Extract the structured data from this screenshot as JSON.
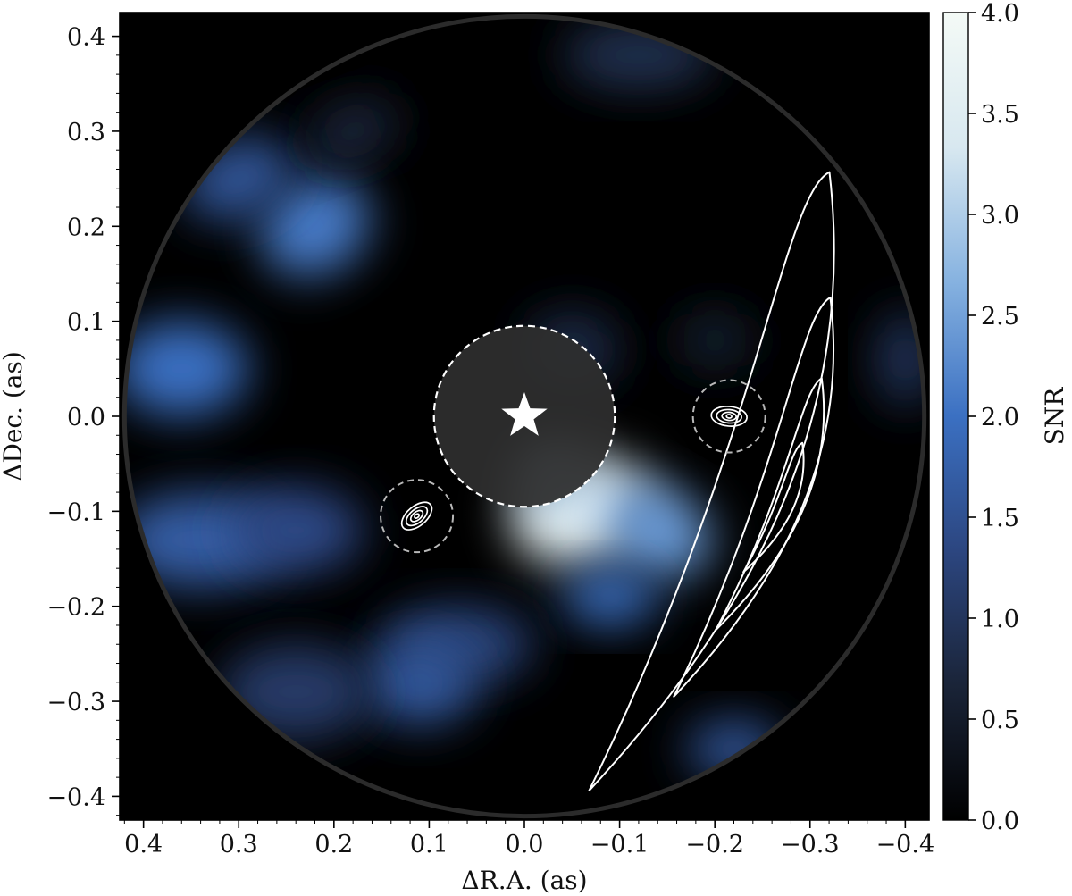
{
  "chart_data": {
    "type": "heatmap",
    "title": "",
    "xlabel": "ΔR.A. (as)",
    "ylabel": "ΔDec. (as)",
    "xlim": [
      0.425,
      -0.425
    ],
    "ylim": [
      -0.425,
      0.425
    ],
    "x_ticks": [
      0.4,
      0.3,
      0.2,
      0.1,
      0.0,
      -0.1,
      -0.2,
      -0.3,
      -0.4
    ],
    "x_tick_labels": [
      "0.4",
      "0.3",
      "0.2",
      "0.1",
      "0.0",
      "−0.1",
      "−0.2",
      "−0.3",
      "−0.4"
    ],
    "y_ticks": [
      0.4,
      0.3,
      0.2,
      0.1,
      0.0,
      -0.1,
      -0.2,
      -0.3,
      -0.4
    ],
    "y_tick_labels": [
      "0.4",
      "0.3",
      "0.2",
      "0.1",
      "0.0",
      "−0.1",
      "−0.2",
      "−0.3",
      "−0.4"
    ],
    "colorbar": {
      "label": "SNR",
      "range": [
        0.0,
        4.0
      ],
      "ticks": [
        0.0,
        0.5,
        1.0,
        1.5,
        2.0,
        2.5,
        3.0,
        3.5,
        4.0
      ],
      "tick_labels": [
        "0.0",
        "0.5",
        "1.0",
        "1.5",
        "2.0",
        "2.5",
        "3.0",
        "3.5",
        "4.0"
      ],
      "colormap": [
        "#000000",
        "#1a2438",
        "#2c4680",
        "#3b70c2",
        "#86b2e0",
        "#d8e8f0",
        "#f4faf6"
      ]
    },
    "field_of_view_radius": 0.42,
    "star": {
      "x": 0.0,
      "y": 0.0
    },
    "inner_mask": {
      "x": 0.0,
      "y": 0.0,
      "radius": 0.095
    },
    "signal_blobs": [
      {
        "x": -0.06,
        "y": -0.1,
        "rx": 0.075,
        "ry": 0.055,
        "angle": -15,
        "snr": 3.6
      },
      {
        "x": -0.03,
        "y": -0.06,
        "rx": 0.04,
        "ry": 0.035,
        "angle": 0,
        "snr": 3.0
      },
      {
        "x": -0.14,
        "y": -0.12,
        "rx": 0.06,
        "ry": 0.045,
        "angle": 30,
        "snr": 2.4
      },
      {
        "x": -0.09,
        "y": -0.19,
        "rx": 0.05,
        "ry": 0.03,
        "angle": 0,
        "snr": 2.0
      },
      {
        "x": 0.22,
        "y": 0.2,
        "rx": 0.06,
        "ry": 0.05,
        "angle": -30,
        "snr": 2.1
      },
      {
        "x": 0.3,
        "y": 0.25,
        "rx": 0.06,
        "ry": 0.04,
        "angle": -20,
        "snr": 1.6
      },
      {
        "x": 0.36,
        "y": 0.05,
        "rx": 0.07,
        "ry": 0.05,
        "angle": 0,
        "snr": 2.0
      },
      {
        "x": 0.34,
        "y": -0.13,
        "rx": 0.09,
        "ry": 0.05,
        "angle": 0,
        "snr": 1.7
      },
      {
        "x": 0.24,
        "y": -0.12,
        "rx": 0.07,
        "ry": 0.045,
        "angle": 0,
        "snr": 1.4
      },
      {
        "x": 0.07,
        "y": -0.24,
        "rx": 0.08,
        "ry": 0.04,
        "angle": 0,
        "snr": 1.3
      },
      {
        "x": 0.11,
        "y": -0.28,
        "rx": 0.06,
        "ry": 0.045,
        "angle": 0,
        "snr": 1.6
      },
      {
        "x": 0.24,
        "y": -0.29,
        "rx": 0.08,
        "ry": 0.05,
        "angle": 0,
        "snr": 1.1
      },
      {
        "x": -0.22,
        "y": -0.35,
        "rx": 0.05,
        "ry": 0.03,
        "angle": 0,
        "snr": 1.6
      },
      {
        "x": -0.05,
        "y": 0.07,
        "rx": 0.05,
        "ry": 0.04,
        "angle": 0,
        "snr": 0.8
      },
      {
        "x": -0.12,
        "y": 0.38,
        "rx": 0.08,
        "ry": 0.035,
        "angle": 0,
        "snr": 0.9
      },
      {
        "x": -0.4,
        "y": 0.06,
        "rx": 0.03,
        "ry": 0.05,
        "angle": 0,
        "snr": 1.0
      },
      {
        "x": -0.2,
        "y": 0.08,
        "rx": 0.04,
        "ry": 0.03,
        "angle": 0,
        "snr": 0.6
      },
      {
        "x": 0.18,
        "y": 0.3,
        "rx": 0.05,
        "ry": 0.03,
        "angle": -20,
        "snr": 0.7
      }
    ],
    "candidates": [
      {
        "x": 0.113,
        "y": -0.105,
        "circle_radius": 0.038
      },
      {
        "x": -0.215,
        "y": 0.0,
        "circle_radius": 0.038
      }
    ],
    "orbit_contours": [
      {
        "x_range": [
          -0.068,
          -0.302
        ],
        "y_range": [
          -0.394,
          0.257
        ]
      },
      {
        "x_range": [
          -0.157,
          -0.309
        ],
        "y_range": [
          -0.295,
          0.125
        ]
      },
      {
        "x_range": [
          -0.201,
          -0.304
        ],
        "y_range": [
          -0.225,
          0.04
        ]
      },
      {
        "x_range": [
          -0.23,
          -0.287
        ],
        "y_range": [
          -0.164,
          -0.028
        ]
      }
    ]
  }
}
